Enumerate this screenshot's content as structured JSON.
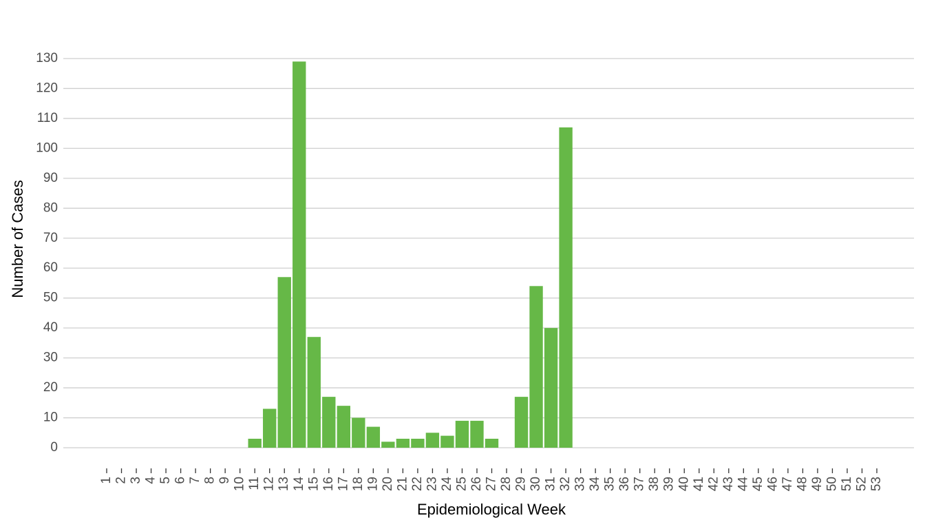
{
  "chart_data": {
    "type": "bar",
    "x_label": "Epidemiological Week",
    "y_label": "Number of Cases",
    "categories": [
      "1",
      "2",
      "3",
      "4",
      "5",
      "6",
      "7",
      "8",
      "9",
      "10",
      "11",
      "12",
      "13",
      "14",
      "15",
      "16",
      "17",
      "18",
      "19",
      "20",
      "21",
      "22",
      "23",
      "24",
      "25",
      "26",
      "27",
      "28",
      "29",
      "30",
      "31",
      "32",
      "33",
      "34",
      "35",
      "36",
      "37",
      "38",
      "39",
      "40",
      "41",
      "42",
      "43",
      "44",
      "45",
      "46",
      "47",
      "48",
      "49",
      "50",
      "51",
      "52",
      "53"
    ],
    "values": [
      0,
      0,
      0,
      0,
      0,
      0,
      0,
      0,
      0,
      0,
      3,
      13,
      57,
      129,
      37,
      17,
      14,
      10,
      7,
      2,
      3,
      3,
      5,
      4,
      9,
      9,
      3,
      0,
      17,
      54,
      40,
      107,
      0,
      0,
      0,
      0,
      0,
      0,
      0,
      0,
      0,
      0,
      0,
      0,
      0,
      0,
      0,
      0,
      0,
      0,
      0,
      0,
      0
    ],
    "color": "#66b847",
    "ylim": [
      0,
      130
    ],
    "yticks": [
      0,
      10,
      20,
      30,
      40,
      50,
      60,
      70,
      80,
      90,
      100,
      110,
      120,
      130
    ],
    "grid": true
  }
}
